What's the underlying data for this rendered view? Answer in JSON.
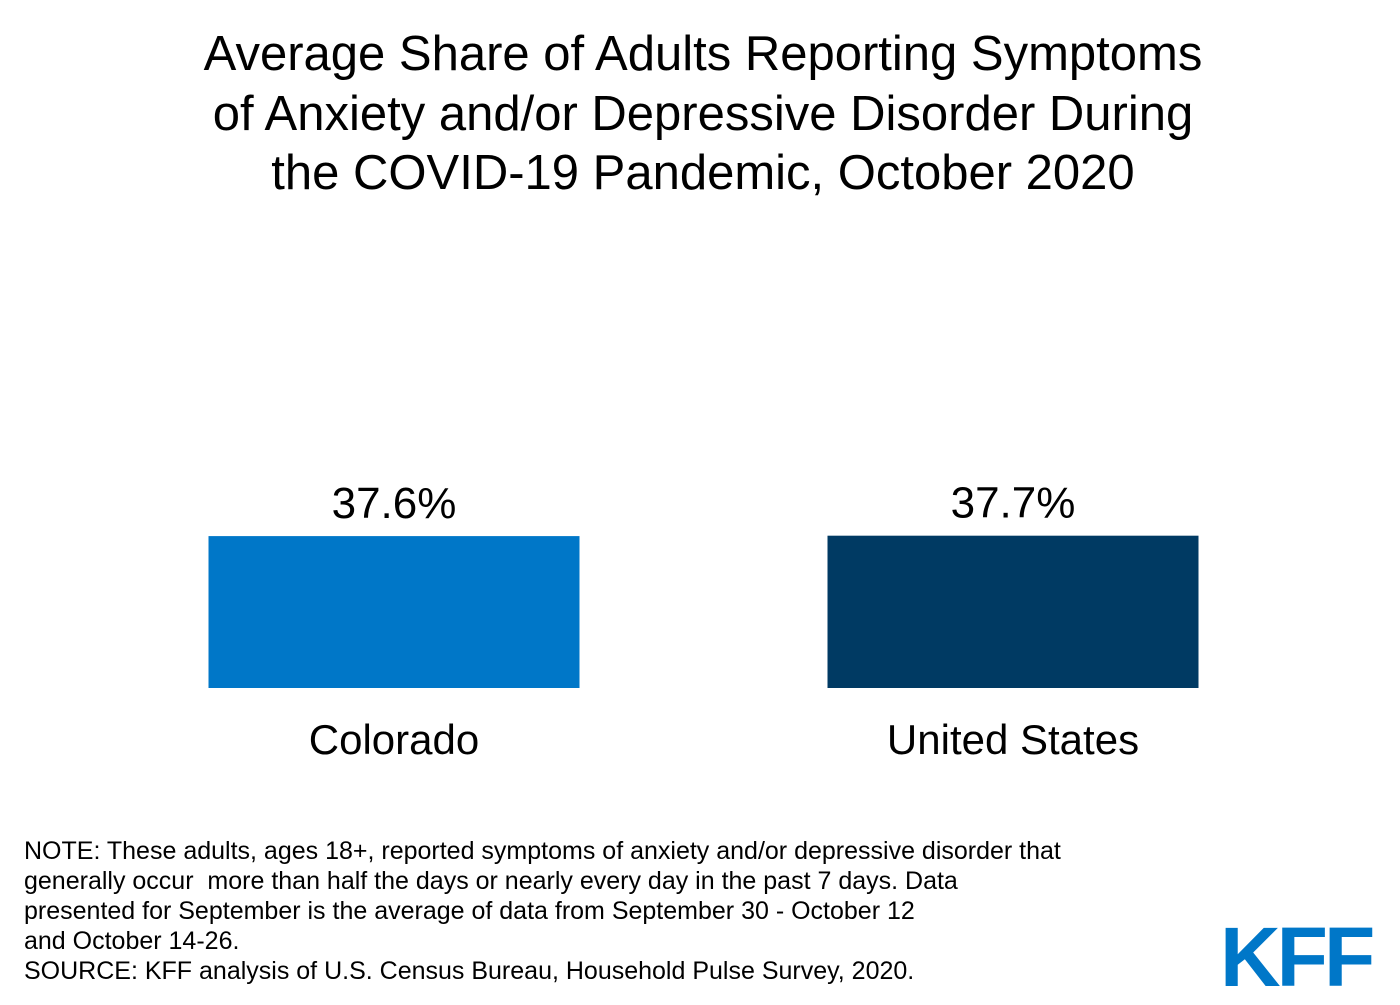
{
  "chart_data": {
    "type": "bar",
    "title": [
      "Average Share of Adults Reporting Symptoms",
      "of Anxiety and/or Depressive Disorder During",
      "the COVID-19 Pandemic, October 2020"
    ],
    "categories": [
      "Colorado",
      "United States"
    ],
    "values": [
      37.6,
      37.7
    ],
    "value_labels": [
      "37.6%",
      "37.7%"
    ],
    "colors": [
      "#0077c8",
      "#003a63"
    ],
    "note": [
      "NOTE: These adults, ages 18+, reported symptoms of anxiety and/or depressive disorder that",
      "generally occur  more than half the days or nearly every day in the past 7 days. Data",
      "presented for September is the average of data from September 30 - October 12",
      "and October 14-26."
    ],
    "source": "SOURCE: KFF analysis of U.S. Census Bureau, Household Pulse Survey, 2020.",
    "logo": "KFF"
  }
}
